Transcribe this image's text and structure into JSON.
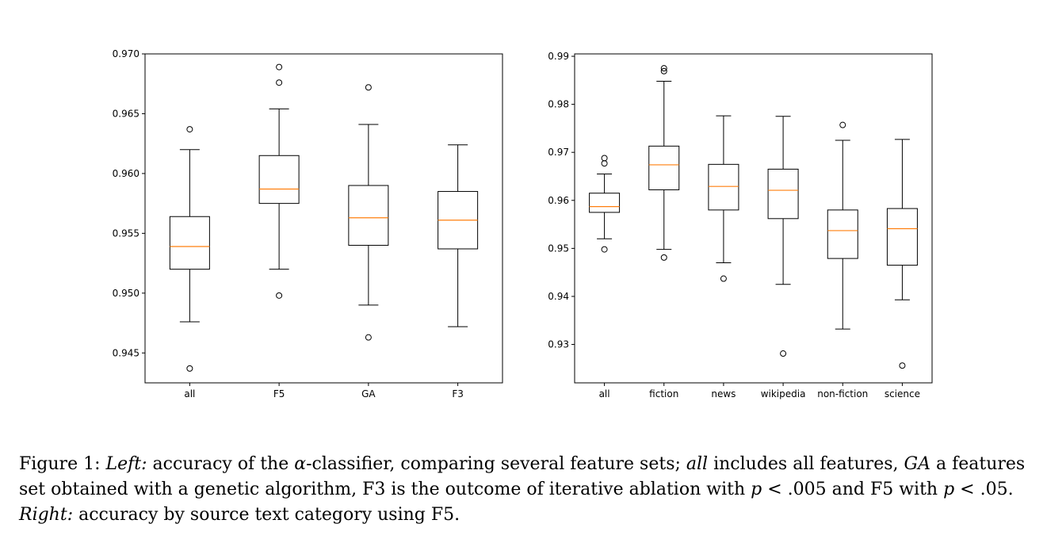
{
  "chart_data": [
    {
      "type": "box",
      "categories": [
        "all",
        "F5",
        "GA",
        "F3"
      ],
      "ylim": [
        0.9425,
        0.97
      ],
      "yticks": [
        "0.945",
        "0.950",
        "0.955",
        "0.960",
        "0.965",
        "0.970"
      ],
      "boxes": [
        {
          "min": 0.9476,
          "q1": 0.952,
          "median": 0.9539,
          "q3": 0.9564,
          "max": 0.962,
          "outliers": [
            0.9637,
            0.9437
          ]
        },
        {
          "min": 0.952,
          "q1": 0.9575,
          "median": 0.9587,
          "q3": 0.9615,
          "max": 0.9654,
          "outliers": [
            0.9689,
            0.9676,
            0.9498
          ]
        },
        {
          "min": 0.949,
          "q1": 0.954,
          "median": 0.9563,
          "q3": 0.959,
          "max": 0.9641,
          "outliers": [
            0.9672,
            0.9463
          ]
        },
        {
          "min": 0.9472,
          "q1": 0.9537,
          "median": 0.9561,
          "q3": 0.9585,
          "max": 0.9624,
          "outliers": []
        }
      ]
    },
    {
      "type": "box",
      "categories": [
        "all",
        "fiction",
        "news",
        "wikipedia",
        "non-fiction",
        "science"
      ],
      "ylim": [
        0.922,
        0.9905
      ],
      "yticks": [
        "0.93",
        "0.94",
        "0.95",
        "0.96",
        "0.97",
        "0.98",
        "0.99"
      ],
      "boxes": [
        {
          "min": 0.952,
          "q1": 0.9575,
          "median": 0.9587,
          "q3": 0.9615,
          "max": 0.9655,
          "outliers": [
            0.9688,
            0.9677,
            0.9498
          ]
        },
        {
          "min": 0.9498,
          "q1": 0.9622,
          "median": 0.9674,
          "q3": 0.9713,
          "max": 0.9848,
          "outliers": [
            0.9875,
            0.9869,
            0.9481
          ]
        },
        {
          "min": 0.947,
          "q1": 0.958,
          "median": 0.9629,
          "q3": 0.9675,
          "max": 0.9776,
          "outliers": [
            0.9437
          ]
        },
        {
          "min": 0.9425,
          "q1": 0.9562,
          "median": 0.9621,
          "q3": 0.9665,
          "max": 0.9775,
          "outliers": [
            0.9281
          ]
        },
        {
          "min": 0.9332,
          "q1": 0.9479,
          "median": 0.9537,
          "q3": 0.958,
          "max": 0.9725,
          "outliers": [
            0.9757
          ]
        },
        {
          "min": 0.9393,
          "q1": 0.9465,
          "median": 0.9541,
          "q3": 0.9583,
          "max": 0.9727,
          "outliers": [
            0.9256
          ]
        }
      ]
    }
  ],
  "caption": {
    "prefix": "Figure 1: ",
    "left_label": "Left:",
    "part1": " accuracy of the ",
    "alpha": "α",
    "part2": "-classifier, comparing several feature sets; ",
    "all_word": "all",
    "part3": " includes all features, ",
    "ga_word": "GA",
    "part4": " a features set obtained with a genetic algorithm, F3 is the outcome of iterative ablation with ",
    "p1": "p",
    "part5": " < .005 and F5 with ",
    "p2": "p",
    "part6": " < .05. ",
    "right_label": "Right:",
    "part7": " accuracy by source text category using F5."
  },
  "colors": {
    "box": "#000000",
    "median": "#ff7f0e",
    "background": "#ffffff"
  }
}
